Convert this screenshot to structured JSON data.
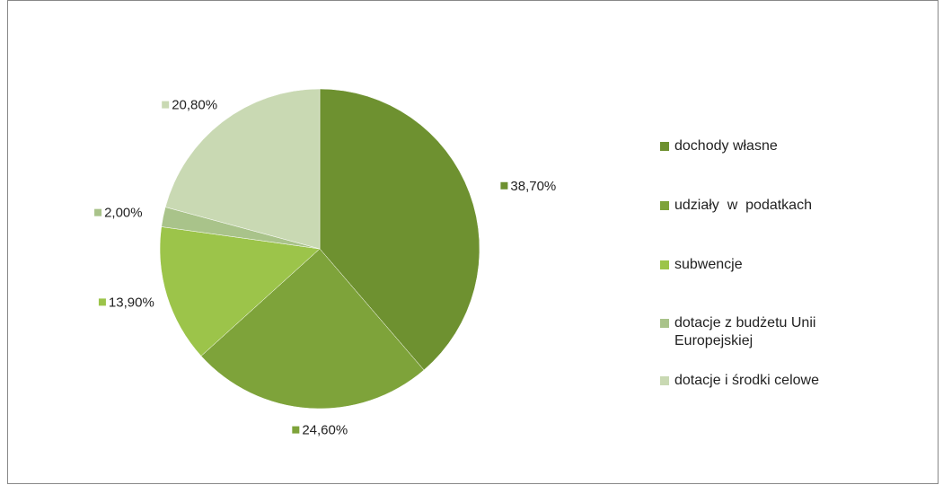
{
  "chart_data": {
    "type": "pie",
    "categories": [
      "dochody własne",
      "udziały  w  podatkach",
      "subwencje",
      "dotacje z budżetu Unii Europejskiej",
      "dotacje i środki celowe"
    ],
    "values": [
      38.7,
      24.6,
      13.9,
      2.0,
      20.8
    ],
    "value_labels": [
      "38,70%",
      "24,60%",
      "13,90%",
      "2,00%",
      "20,80%"
    ],
    "colors": [
      "#6e9130",
      "#7ea33a",
      "#9cc44a",
      "#a9c38a",
      "#c9d9b3"
    ],
    "legend": "right"
  }
}
